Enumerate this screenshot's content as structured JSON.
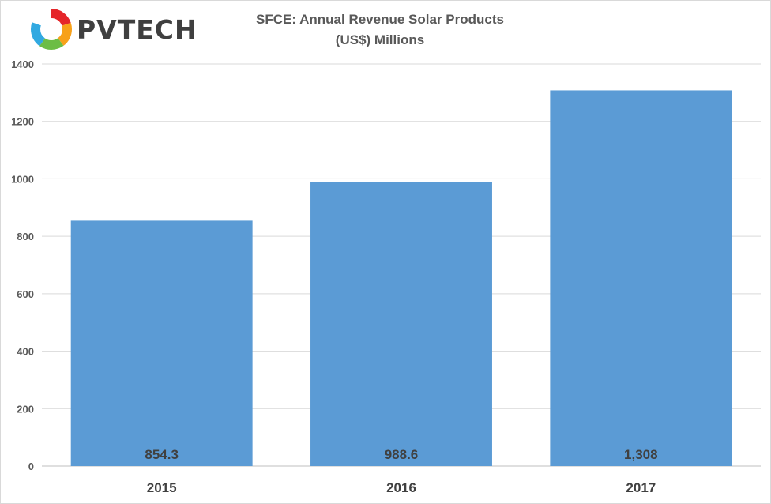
{
  "logo": {
    "text": "PVTECH",
    "ring_colors": [
      "#e5262a",
      "#f7a11a",
      "#31a9e1",
      "#6cbd45",
      "#8e4a9c"
    ]
  },
  "colors": {
    "bar": "#5b9bd5",
    "grid": "#d9d9d9",
    "text": "#595959"
  },
  "chart_data": {
    "type": "bar",
    "title": "SFCE: Annual Revenue Solar Products",
    "subtitle": "(US$) Millions",
    "categories": [
      "2015",
      "2016",
      "2017"
    ],
    "values": [
      854.3,
      988.6,
      1308
    ],
    "data_labels": [
      "854.3",
      "988.6",
      "1,308"
    ],
    "ylim": [
      0,
      1400
    ],
    "yticks": [
      0,
      200,
      400,
      600,
      800,
      1000,
      1200,
      1400
    ],
    "grid": true,
    "legend": "none"
  }
}
